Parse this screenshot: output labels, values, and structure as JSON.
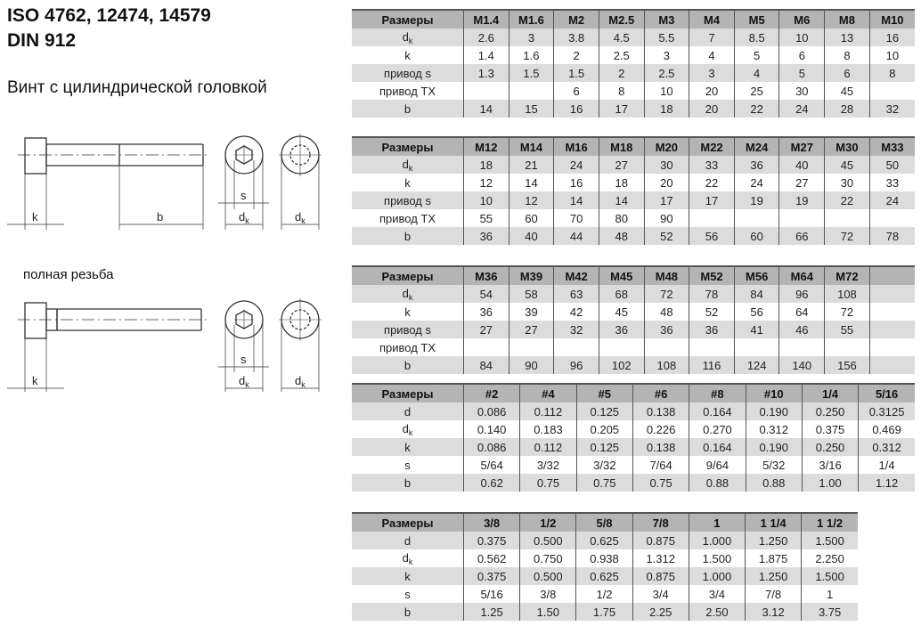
{
  "header": {
    "title_line1": "ISO 4762, 12474, 14579",
    "title_line2": "DIN 912",
    "subtitle": "Винт с цилиндрической головкой"
  },
  "drawings": {
    "full_thread_label": "полная резьба",
    "dim_k": "k",
    "dim_b": "b",
    "dim_s": "s",
    "dim_dk": "d",
    "dim_dk_sub": "k"
  },
  "tables": [
    {
      "header": [
        "Размеры",
        "M1.4",
        "M1.6",
        "M2",
        "M2.5",
        "M3",
        "M4",
        "M5",
        "M6",
        "M8",
        "M10"
      ],
      "rows": [
        {
          "label": "d",
          "sub": "k",
          "values": [
            "2.6",
            "3",
            "3.8",
            "4.5",
            "5.5",
            "7",
            "8.5",
            "10",
            "13",
            "16"
          ]
        },
        {
          "label": "k",
          "values": [
            "1.4",
            "1.6",
            "2",
            "2.5",
            "3",
            "4",
            "5",
            "6",
            "8",
            "10"
          ]
        },
        {
          "label": "привод s",
          "values": [
            "1.3",
            "1.5",
            "1.5",
            "2",
            "2.5",
            "3",
            "4",
            "5",
            "6",
            "8"
          ]
        },
        {
          "label": "привод TX",
          "values": [
            "",
            "",
            "6",
            "8",
            "10",
            "20",
            "25",
            "30",
            "45",
            ""
          ]
        },
        {
          "label": "b",
          "values": [
            "14",
            "15",
            "16",
            "17",
            "18",
            "20",
            "22",
            "24",
            "28",
            "32"
          ]
        }
      ]
    },
    {
      "header": [
        "Размеры",
        "M12",
        "M14",
        "M16",
        "M18",
        "M20",
        "M22",
        "M24",
        "M27",
        "M30",
        "M33"
      ],
      "rows": [
        {
          "label": "d",
          "sub": "k",
          "values": [
            "18",
            "21",
            "24",
            "27",
            "30",
            "33",
            "36",
            "40",
            "45",
            "50"
          ]
        },
        {
          "label": "k",
          "values": [
            "12",
            "14",
            "16",
            "18",
            "20",
            "22",
            "24",
            "27",
            "30",
            "33"
          ]
        },
        {
          "label": "привод s",
          "values": [
            "10",
            "12",
            "14",
            "14",
            "17",
            "17",
            "19",
            "19",
            "22",
            "24"
          ]
        },
        {
          "label": "привод TX",
          "values": [
            "55",
            "60",
            "70",
            "80",
            "90",
            "",
            "",
            "",
            "",
            ""
          ]
        },
        {
          "label": "b",
          "values": [
            "36",
            "40",
            "44",
            "48",
            "52",
            "56",
            "60",
            "66",
            "72",
            "78"
          ]
        }
      ]
    },
    {
      "header": [
        "Размеры",
        "M36",
        "M39",
        "M42",
        "M45",
        "M48",
        "M52",
        "M56",
        "M64",
        "M72",
        ""
      ],
      "rows": [
        {
          "label": "d",
          "sub": "k",
          "values": [
            "54",
            "58",
            "63",
            "68",
            "72",
            "78",
            "84",
            "96",
            "108",
            ""
          ]
        },
        {
          "label": "k",
          "values": [
            "36",
            "39",
            "42",
            "45",
            "48",
            "52",
            "56",
            "64",
            "72",
            ""
          ]
        },
        {
          "label": "привод s",
          "values": [
            "27",
            "27",
            "32",
            "36",
            "36",
            "36",
            "41",
            "46",
            "55",
            ""
          ]
        },
        {
          "label": "привод TX",
          "values": [
            "",
            "",
            "",
            "",
            "",
            "",
            "",
            "",
            "",
            ""
          ]
        },
        {
          "label": "b",
          "values": [
            "84",
            "90",
            "96",
            "102",
            "108",
            "116",
            "124",
            "140",
            "156",
            ""
          ]
        }
      ]
    },
    {
      "header": [
        "Размеры",
        "#2",
        "#4",
        "#5",
        "#6",
        "#8",
        "#10",
        "1/4",
        "5/16"
      ],
      "rows": [
        {
          "label": "d",
          "values": [
            "0.086",
            "0.112",
            "0.125",
            "0.138",
            "0.164",
            "0.190",
            "0.250",
            "0.3125"
          ]
        },
        {
          "label": "d",
          "sub": "k",
          "values": [
            "0.140",
            "0.183",
            "0.205",
            "0.226",
            "0.270",
            "0.312",
            "0.375",
            "0.469"
          ]
        },
        {
          "label": "k",
          "values": [
            "0.086",
            "0.112",
            "0.125",
            "0.138",
            "0.164",
            "0.190",
            "0.250",
            "0.312"
          ]
        },
        {
          "label": "s",
          "values": [
            "5/64",
            "3/32",
            "3/32",
            "7/64",
            "9/64",
            "5/32",
            "3/16",
            "1/4"
          ]
        },
        {
          "label": "b",
          "values": [
            "0.62",
            "0.75",
            "0.75",
            "0.75",
            "0.88",
            "0.88",
            "1.00",
            "1.12"
          ]
        }
      ]
    },
    {
      "header": [
        "Размеры",
        "3/8",
        "1/2",
        "5/8",
        "7/8",
        "1",
        "1 1/4",
        "1 1/2"
      ],
      "rows": [
        {
          "label": "d",
          "values": [
            "0.375",
            "0.500",
            "0.625",
            "0.875",
            "1.000",
            "1.250",
            "1.500"
          ]
        },
        {
          "label": "d",
          "sub": "k",
          "values": [
            "0.562",
            "0.750",
            "0.938",
            "1.312",
            "1.500",
            "1.875",
            "2.250"
          ]
        },
        {
          "label": "k",
          "values": [
            "0.375",
            "0.500",
            "0.625",
            "0.875",
            "1.000",
            "1.250",
            "1.500"
          ]
        },
        {
          "label": "s",
          "values": [
            "5/16",
            "3/8",
            "1/2",
            "3/4",
            "3/4",
            "7/8",
            "1"
          ]
        },
        {
          "label": "b",
          "values": [
            "1.25",
            "1.50",
            "1.75",
            "2.25",
            "2.50",
            "3.12",
            "3.75"
          ]
        }
      ]
    }
  ]
}
